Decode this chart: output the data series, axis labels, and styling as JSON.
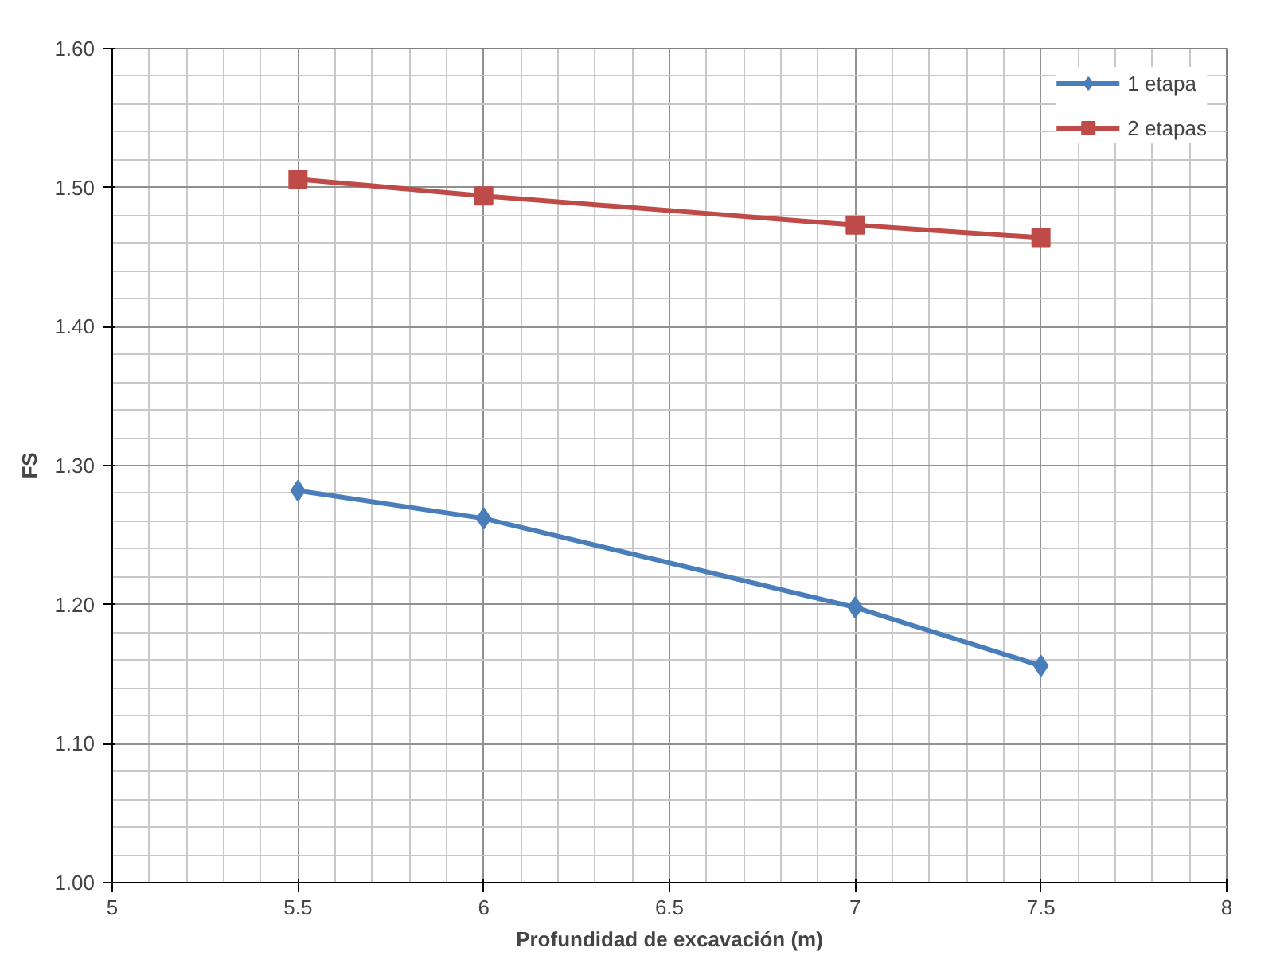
{
  "chart_data": {
    "type": "line",
    "xlabel": "Profundidad de excavación (m)",
    "ylabel": "FS",
    "x": [
      5.5,
      6,
      7,
      7.5
    ],
    "series": [
      {
        "name": "1 etapa",
        "color": "#4a7ebb",
        "marker": "diamond",
        "values": [
          1.282,
          1.262,
          1.198,
          1.156
        ]
      },
      {
        "name": "2 etapas",
        "color": "#be4b48",
        "marker": "square",
        "values": [
          1.506,
          1.494,
          1.473,
          1.464
        ]
      }
    ],
    "xlim": [
      5,
      8
    ],
    "xticks": [
      5,
      5.5,
      6,
      6.5,
      7,
      7.5,
      8
    ],
    "ylim": [
      1.0,
      1.6
    ],
    "yticks": [
      {
        "value": 1.0,
        "label": "1.00"
      },
      {
        "value": 1.1,
        "label": "1.10"
      },
      {
        "value": 1.2,
        "label": "1.20"
      },
      {
        "value": 1.3,
        "label": "1.30"
      },
      {
        "value": 1.4,
        "label": "1.40"
      },
      {
        "value": 1.5,
        "label": "1.50"
      },
      {
        "value": 1.6,
        "label": "1.60"
      }
    ],
    "grid": true,
    "legend": "top right",
    "line_style": "solid"
  }
}
